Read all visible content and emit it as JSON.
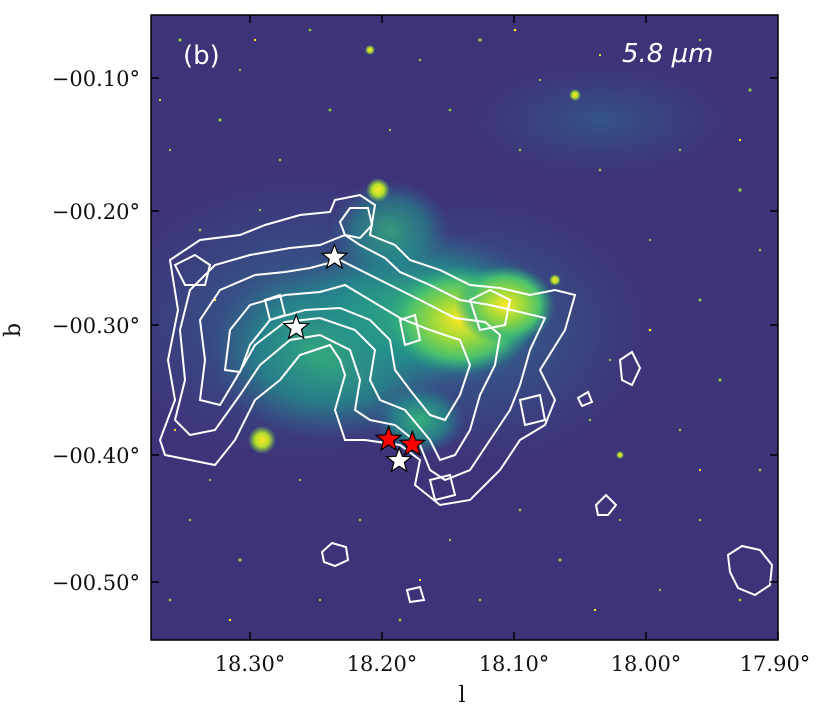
{
  "panel_label": "(b)",
  "band_label": "5.8 μm",
  "chart_data": {
    "type": "image",
    "xlabel": "l",
    "ylabel": "b",
    "x_ticks": [
      "18.30°",
      "18.20°",
      "18.10°",
      "18.00°",
      "17.90°"
    ],
    "y_ticks": [
      "−00.10°",
      "−00.20°",
      "−00.30°",
      "−00.40°",
      "−00.50°"
    ],
    "colormap": "viridis",
    "contour_color": "#ffffff",
    "markers": [
      {
        "l": 18.265,
        "b": -0.299,
        "color": "#ffffff"
      },
      {
        "l": 18.236,
        "b": -0.243,
        "color": "#ffffff"
      },
      {
        "l": 18.195,
        "b": -0.388,
        "color": "#ff0000"
      },
      {
        "l": 18.177,
        "b": -0.392,
        "color": "#ff0000"
      },
      {
        "l": 18.187,
        "b": -0.405,
        "color": "#ffffff"
      }
    ]
  }
}
